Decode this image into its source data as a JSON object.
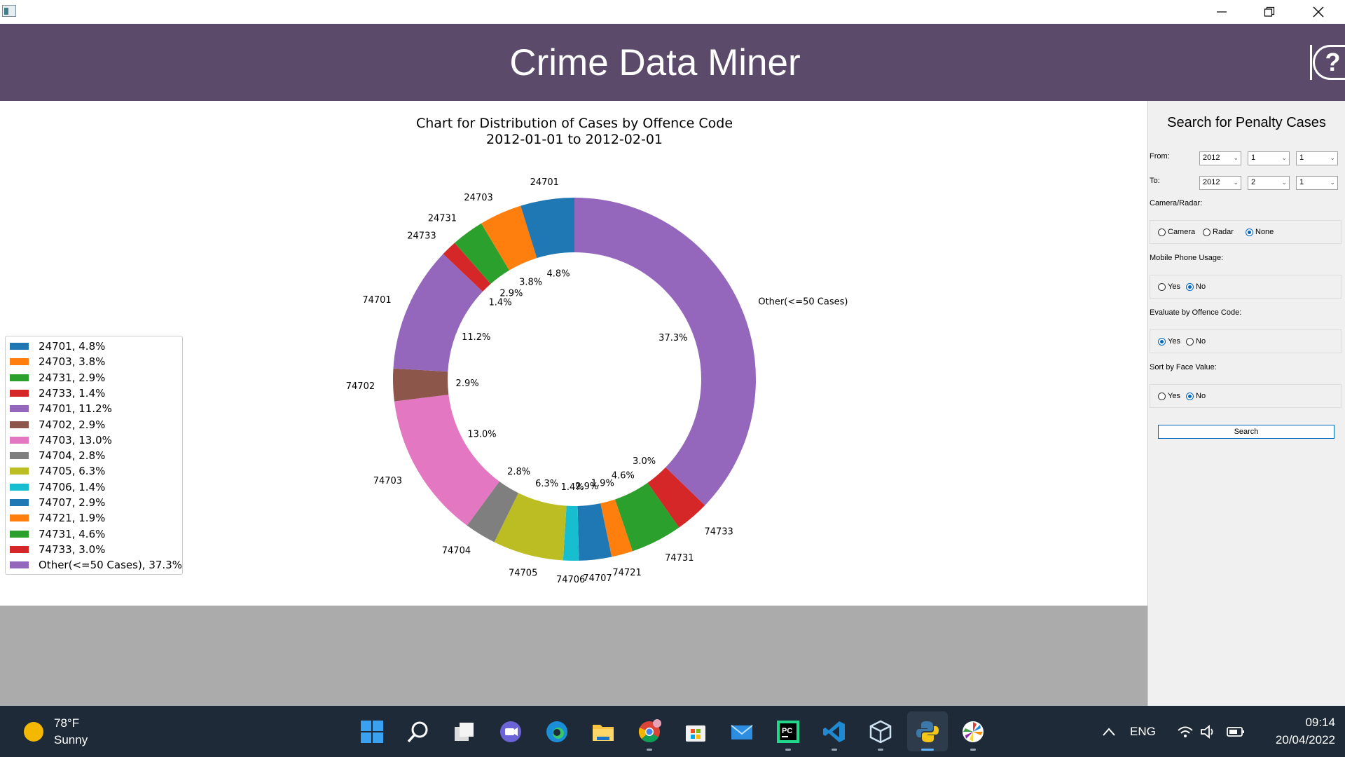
{
  "window": {
    "controls": [
      "minimize",
      "restore",
      "close"
    ]
  },
  "header": {
    "title": "Crime Data Miner",
    "help_label": "?"
  },
  "chart_data": {
    "type": "pie",
    "style": "donut",
    "title": "Chart for Distribution of Cases by Offence Code",
    "subtitle": "2012-01-01 to 2012-02-01",
    "legend_position": "left",
    "categories": [
      "Other(<=50 Cases)",
      "74733",
      "74731",
      "74721",
      "74707",
      "74706",
      "74705",
      "74704",
      "74703",
      "74702",
      "74701",
      "24733",
      "24731",
      "24703",
      "24701"
    ],
    "values": [
      37.3,
      3.0,
      4.6,
      1.9,
      2.9,
      1.4,
      6.3,
      2.8,
      13.0,
      2.9,
      11.2,
      1.4,
      2.9,
      3.8,
      4.8
    ],
    "value_labels": [
      "37.3%",
      "3.0%",
      "4.6%",
      "1.9%",
      "2.9%",
      "1.4%",
      "6.3%",
      "2.8%",
      "13.0%",
      "2.9%",
      "11.2%",
      "1.4%",
      "2.9%",
      "3.8%",
      "4.8%"
    ],
    "colors": [
      "#9467bd",
      "#d62728",
      "#2ca02c",
      "#ff7f0e",
      "#1f77b4",
      "#17becf",
      "#bcbd22",
      "#7f7f7f",
      "#e377c2",
      "#8c564b",
      "#9467bd",
      "#d62728",
      "#2ca02c",
      "#ff7f0e",
      "#1f77b4"
    ],
    "legend": [
      {
        "label": "24701, 4.8%",
        "color": "#1f77b4"
      },
      {
        "label": "24703, 3.8%",
        "color": "#ff7f0e"
      },
      {
        "label": "24731, 2.9%",
        "color": "#2ca02c"
      },
      {
        "label": "24733, 1.4%",
        "color": "#d62728"
      },
      {
        "label": "74701, 11.2%",
        "color": "#9467bd"
      },
      {
        "label": "74702, 2.9%",
        "color": "#8c564b"
      },
      {
        "label": "74703, 13.0%",
        "color": "#e377c2"
      },
      {
        "label": "74704, 2.8%",
        "color": "#7f7f7f"
      },
      {
        "label": "74705, 6.3%",
        "color": "#bcbd22"
      },
      {
        "label": "74706, 1.4%",
        "color": "#17becf"
      },
      {
        "label": "74707, 2.9%",
        "color": "#1f77b4"
      },
      {
        "label": "74721, 1.9%",
        "color": "#ff7f0e"
      },
      {
        "label": "74731, 4.6%",
        "color": "#2ca02c"
      },
      {
        "label": "74733, 3.0%",
        "color": "#d62728"
      },
      {
        "label": "Other(<=50 Cases), 37.3%",
        "color": "#9467bd"
      }
    ]
  },
  "sidebar": {
    "title": "Search for Penalty Cases",
    "from_label": "From:",
    "from": {
      "year": "2012",
      "month": "1",
      "day": "1"
    },
    "to_label": "To:",
    "to": {
      "year": "2012",
      "month": "2",
      "day": "1"
    },
    "camera_label": "Camera/Radar:",
    "camera_options": [
      "Camera",
      "Radar",
      "None"
    ],
    "camera_selected": "None",
    "mobile_label": "Mobile Phone Usage:",
    "mobile_options": [
      "Yes",
      "No"
    ],
    "mobile_selected": "No",
    "offence_label": "Evaluate by Offence Code:",
    "offence_options": [
      "Yes",
      "No"
    ],
    "offence_selected": "Yes",
    "face_label": "Sort by Face Value:",
    "face_options": [
      "Yes",
      "No"
    ],
    "face_selected": "No",
    "search_label": "Search"
  },
  "taskbar": {
    "weather_temp": "78°F",
    "weather_desc": "Sunny",
    "lang": "ENG",
    "time": "09:14",
    "date": "20/04/2022",
    "apps": [
      "start",
      "search",
      "task-view",
      "teams-chat",
      "edge",
      "file-explorer",
      "chrome",
      "microsoft-store",
      "mail",
      "pycharm",
      "vscode",
      "virtualbox",
      "python",
      "app-pinwheel"
    ]
  }
}
